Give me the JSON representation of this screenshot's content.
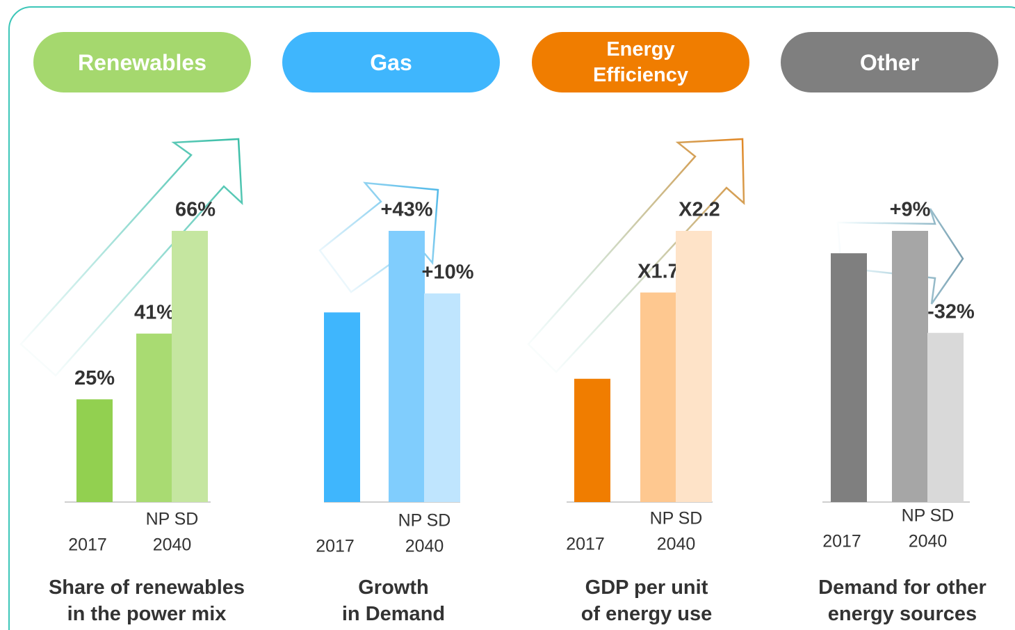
{
  "chart_data": [
    {
      "type": "bar",
      "header": "Renewables",
      "header_color": "#a5d86e",
      "title": "Share of renewables\nin the power mix",
      "categories": [
        "2017",
        "NP",
        "SD"
      ],
      "group_label": "2040",
      "values": [
        25,
        41,
        66
      ],
      "value_labels": [
        "25%",
        "41%",
        "66%"
      ],
      "colors": [
        "#92d050",
        "#a9db72",
        "#c5e6a0"
      ]
    },
    {
      "type": "bar",
      "header": "Gas",
      "header_color": "#3fb6fd",
      "title": "Growth\nin Demand",
      "categories": [
        "2017",
        "NP",
        "SD"
      ],
      "group_label": "2040",
      "values": [
        100,
        143,
        110
      ],
      "value_labels": [
        null,
        "+43%",
        "+10%"
      ],
      "colors": [
        "#3fb6fd",
        "#80cdfd",
        "#bfe5fe"
      ]
    },
    {
      "type": "bar",
      "header": "Energy\nEfficiency",
      "header_color": "#f07d00",
      "title": "GDP per unit\nof energy use",
      "categories": [
        "2017",
        "NP",
        "SD"
      ],
      "group_label": "2040",
      "values": [
        1,
        1.7,
        2.2
      ],
      "value_labels": [
        null,
        "X1.7",
        "X2.2"
      ],
      "colors": [
        "#f07d00",
        "#fec890",
        "#fee3c8"
      ]
    },
    {
      "type": "bar",
      "header": "Other",
      "header_color": "#7f7f7f",
      "title": "Demand for other\nenergy sources",
      "categories": [
        "2017",
        "NP",
        "SD"
      ],
      "group_label": "2040",
      "values": [
        100,
        109,
        68
      ],
      "value_labels": [
        null,
        "+9%",
        "-32%"
      ],
      "colors": [
        "#7f7f7f",
        "#a6a6a6",
        "#d9d9d9"
      ]
    }
  ]
}
